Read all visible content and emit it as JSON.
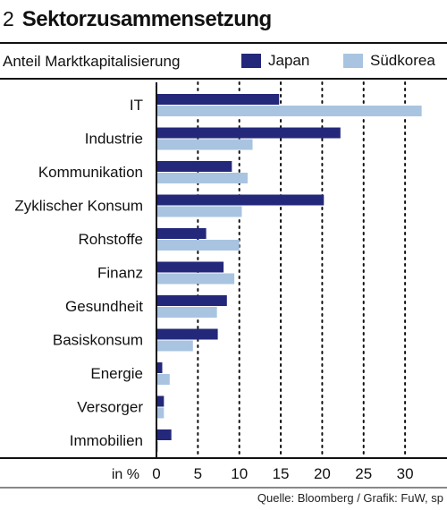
{
  "header": {
    "number": "2",
    "title": "Sektorzusammensetzung",
    "subtitle": "Anteil Marktkapitalisierung"
  },
  "legend": [
    {
      "label": "Japan",
      "color": "#23287a"
    },
    {
      "label": "Südkorea",
      "color": "#a9c4e0"
    }
  ],
  "source": "Quelle: Bloomberg / Grafik: FuW, sp",
  "chart_data": {
    "type": "bar",
    "orientation": "horizontal",
    "title": "Sektorzusammensetzung",
    "subtitle": "Anteil Marktkapitalisierung",
    "xlabel": "in %",
    "xlim": [
      0,
      33
    ],
    "xticks": [
      0,
      5,
      10,
      15,
      20,
      25,
      30
    ],
    "grid": "dotted vertical",
    "legend_position": "top-right",
    "categories": [
      "IT",
      "Industrie",
      "Kommunikation",
      "Zyklischer Konsum",
      "Rohstoffe",
      "Finanz",
      "Gesundheit",
      "Basiskonsum",
      "Energie",
      "Versorger",
      "Immobilien"
    ],
    "series": [
      {
        "name": "Japan",
        "color": "#23287a",
        "values": [
          14.8,
          22.2,
          9.1,
          20.2,
          6.0,
          8.1,
          8.5,
          7.4,
          0.7,
          0.9,
          1.8
        ]
      },
      {
        "name": "Südkorea",
        "color": "#a9c4e0",
        "values": [
          32.0,
          11.6,
          11.0,
          10.3,
          10.0,
          9.4,
          7.3,
          4.4,
          1.6,
          0.9,
          0.2
        ]
      }
    ]
  }
}
